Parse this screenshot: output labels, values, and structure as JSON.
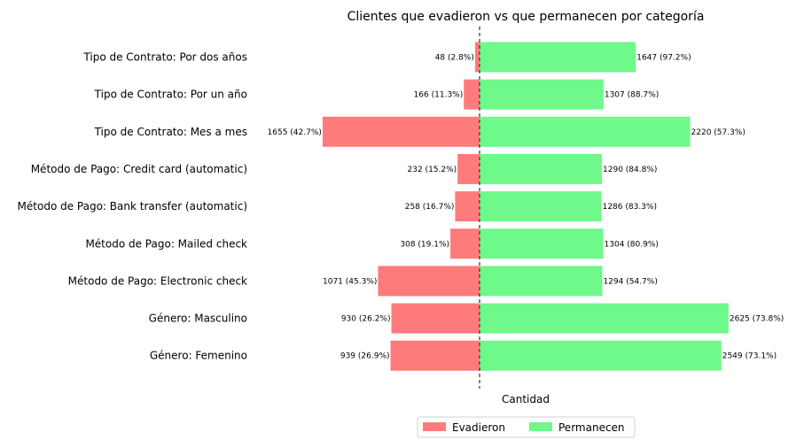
{
  "chart_data": {
    "type": "bar",
    "orientation": "horizontal-diverging",
    "title": "Clientes que evadieron vs que permanecen por categoría",
    "xlabel": "Cantidad",
    "ylabel": "",
    "categories": [
      "Tipo de Contrato: Por dos años",
      "Tipo de Contrato: Por un año",
      "Tipo de Contrato: Mes a mes",
      "Método de Pago: Credit card (automatic)",
      "Método de Pago: Bank transfer (automatic)",
      "Método de Pago: Mailed check",
      "Método de Pago: Electronic check",
      "Género: Masculino",
      "Género: Femenino"
    ],
    "series": [
      {
        "name": "Evadieron",
        "color": "#ff7b7b",
        "values": [
          48,
          166,
          1655,
          232,
          258,
          308,
          1071,
          930,
          939
        ],
        "labels": [
          "48 (2.8%)",
          "166 (11.3%)",
          "1655 (42.7%)",
          "232 (15.2%)",
          "258 (16.7%)",
          "308 (19.1%)",
          "1071 (45.3%)",
          "930 (26.2%)",
          "939 (26.9%)"
        ]
      },
      {
        "name": "Permanecen",
        "color": "#6ef98a",
        "values": [
          1647,
          1307,
          2220,
          1290,
          1286,
          1304,
          1294,
          2625,
          2549
        ],
        "labels": [
          "1647 (97.2%)",
          "1307 (88.7%)",
          "2220 (57.3%)",
          "1290 (84.8%)",
          "1286 (83.3%)",
          "1304 (80.9%)",
          "1294 (54.7%)",
          "2625 (73.8%)",
          "2549 (73.1%)"
        ]
      }
    ],
    "grid": false,
    "legend_position": "bottom-center",
    "zero_line": "dashed"
  }
}
